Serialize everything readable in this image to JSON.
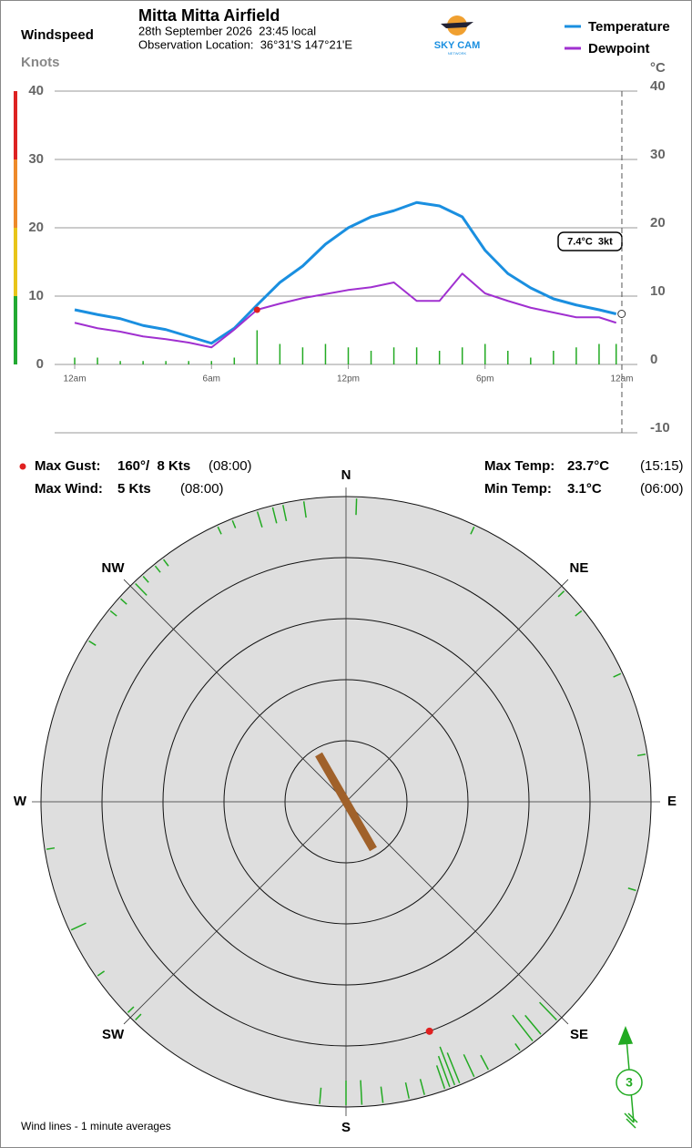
{
  "chart_data": [
    {
      "type": "line",
      "title": "Mitta Mitta Airfield",
      "subtitle": "28th September 2026  23:45 local",
      "location": "Observation Location:  36°31'S 147°21'E",
      "ylabel": "Windspeed",
      "yunit": "Knots",
      "y2unit": "°C",
      "annotation": "7.4°C  3kt",
      "x": [
        0,
        1,
        2,
        3,
        4,
        5,
        6,
        7,
        8,
        9,
        10,
        11,
        12,
        13,
        14,
        15,
        16,
        17,
        18,
        19,
        20,
        21,
        22,
        23,
        23.75
      ],
      "xlim": [
        -0.88,
        24.68
      ],
      "xticks": [
        {
          "value": 0,
          "label": "12am"
        },
        {
          "value": 6,
          "label": "6am"
        },
        {
          "value": 12,
          "label": "12pm"
        },
        {
          "value": 18,
          "label": "6pm"
        },
        {
          "value": 24,
          "label": "12am"
        }
      ],
      "ylim": [
        -10,
        40
      ],
      "yticks": [
        0,
        10,
        20,
        30,
        40
      ],
      "y2lim": [
        -10,
        40
      ],
      "y2ticks": [
        -10,
        0,
        10,
        20,
        30,
        40
      ],
      "grid": true,
      "speed_bands": [
        {
          "from": 0,
          "to": 10,
          "color": "#22aa33"
        },
        {
          "from": 10,
          "to": 20,
          "color": "#e8c51a"
        },
        {
          "from": 20,
          "to": 30,
          "color": "#ee8a2a"
        },
        {
          "from": 30,
          "to": 40,
          "color": "#dd2222"
        }
      ],
      "series": [
        {
          "name": "Temperature",
          "color": "#1a8fe0",
          "axis": "y2",
          "values": [
            8.0,
            7.3,
            6.7,
            5.7,
            5.1,
            4.1,
            3.1,
            5.3,
            8.7,
            12.0,
            14.4,
            17.6,
            20.0,
            21.6,
            22.5,
            23.7,
            23.2,
            21.6,
            16.7,
            13.3,
            11.2,
            9.6,
            8.7,
            8.0,
            7.4
          ]
        },
        {
          "name": "Dewpoint",
          "color": "#a030d0",
          "axis": "y2",
          "values": [
            6.1,
            5.3,
            4.8,
            4.1,
            3.7,
            3.2,
            2.5,
            5.1,
            8.0,
            8.9,
            9.7,
            10.3,
            10.9,
            11.3,
            12.0,
            9.3,
            9.3,
            13.3,
            10.4,
            9.3,
            8.3,
            7.6,
            6.9,
            6.9,
            6.1
          ]
        },
        {
          "type": "bar",
          "color": "#22aa22",
          "values": [
            1,
            1,
            0.5,
            0.5,
            0.5,
            0.5,
            0.5,
            1,
            5,
            3,
            2.5,
            3,
            2.5,
            2,
            2.5,
            2.5,
            2,
            2.5,
            3,
            2,
            1,
            2,
            2.5,
            3,
            3
          ]
        }
      ],
      "gust": {
        "x": 8,
        "value": 8,
        "color": "#e02020"
      }
    },
    {
      "type": "polar",
      "categories": [
        "N",
        "NE",
        "E",
        "SE",
        "S",
        "SW",
        "W",
        "NW"
      ],
      "rlim": [
        0,
        10
      ],
      "rticks": [
        2,
        4,
        6,
        8,
        10
      ],
      "wind_lines": {
        "color": "#22aa22",
        "directions": [
          2,
          25,
          46,
          51,
          65,
          81,
          107,
          136,
          140,
          142,
          145,
          152,
          155,
          158,
          159,
          160,
          161,
          165,
          168,
          173,
          177,
          180,
          185,
          224,
          226,
          235,
          245,
          261,
          302,
          309,
          312,
          316,
          318,
          321,
          323,
          335,
          338,
          343,
          346,
          348,
          352
        ],
        "speeds": [
          2,
          1,
          1,
          1,
          1,
          1,
          1,
          3,
          3,
          4,
          1,
          2,
          3,
          4,
          5,
          4,
          3,
          2,
          2,
          2,
          3,
          3,
          2,
          1,
          1,
          1,
          2,
          1,
          1,
          1,
          1,
          2,
          1,
          1,
          1,
          1,
          1,
          2,
          2,
          2,
          2
        ]
      },
      "current": {
        "direction": 150,
        "speed": 3,
        "color": "#a0612a"
      },
      "gust": {
        "direction": 160,
        "speed": 8,
        "color": "#e02020"
      },
      "note": "Wind lines - 1 minute averages"
    }
  ],
  "logo": {
    "text": "SKY CAM",
    "sub": "NETWORK"
  },
  "stats": [
    {
      "label": "Max Gust:",
      "value": "160°/  8 Kts",
      "time": "(08:00)"
    },
    {
      "label": "Max Wind:",
      "value": "5 Kts",
      "time": "(08:00)"
    },
    {
      "label": "Max Temp:",
      "value": "23.7°C",
      "time": "(15:15)"
    },
    {
      "label": "Min Temp:",
      "value": "3.1°C",
      "time": "(06:00)"
    }
  ]
}
